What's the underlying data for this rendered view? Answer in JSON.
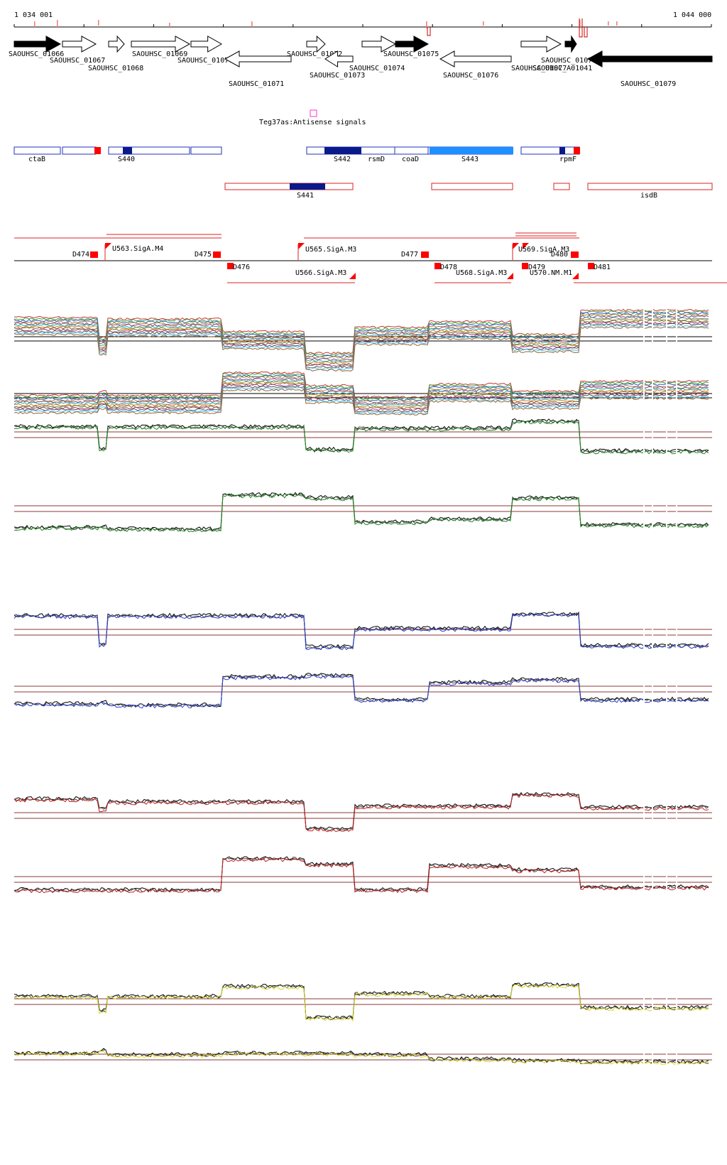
{
  "ruler": {
    "start_label": "1 034 001",
    "end_label": "1 044 000"
  },
  "genes": [
    {
      "name": "SAOUHSC_01066",
      "strand": "+",
      "filled": true
    },
    {
      "name": "SAOUHSC_01067",
      "strand": "+",
      "filled": false
    },
    {
      "name": "SAOUHSC_01068",
      "strand": "+",
      "filled": false
    },
    {
      "name": "SAOUHSC_01069",
      "strand": "+",
      "filled": false
    },
    {
      "name": "SAOUHSC_01070",
      "strand": "+",
      "filled": false
    },
    {
      "name": "SAOUHSC_01071",
      "strand": "-",
      "filled": false
    },
    {
      "name": "SAOUHSC_01072",
      "strand": "+",
      "filled": false
    },
    {
      "name": "SAOUHSC_01073",
      "strand": "-",
      "filled": false
    },
    {
      "name": "SAOUHSC_01074",
      "strand": "+",
      "filled": false
    },
    {
      "name": "SAOUHSC_01075",
      "strand": "+",
      "filled": true
    },
    {
      "name": "SAOUHSC_01076",
      "strand": "-",
      "filled": false
    },
    {
      "name": "SAOUHSC_01077",
      "strand": "+",
      "filled": false
    },
    {
      "name": "SAOUHSC_01078",
      "strand": "+",
      "filled": true
    },
    {
      "name": "SAOUHSC_01079",
      "strand": "-",
      "filled": true
    },
    {
      "name": "SAOUHSC_A01041",
      "strand": "+",
      "filled": false
    }
  ],
  "antisense": {
    "label": "Teg37as:Antisense signals"
  },
  "segments_row1": [
    {
      "label": "ctaB"
    },
    {
      "label": "S440"
    },
    {
      "label": "S442"
    },
    {
      "label": "rsmD"
    },
    {
      "label": "coaD"
    },
    {
      "label": "S443"
    },
    {
      "label": "rpmF"
    }
  ],
  "segments_row2": [
    {
      "label": "S441"
    },
    {
      "label": "isdB"
    }
  ],
  "promoters_top": [
    {
      "label": "D474"
    },
    {
      "label": "U563.SigA.M4"
    },
    {
      "label": "D475"
    },
    {
      "label": "U565.SigA.M3"
    },
    {
      "label": "D477"
    },
    {
      "label": "U569.SigA.M3"
    },
    {
      "label": "D480"
    }
  ],
  "promoters_bottom": [
    {
      "label": "D476"
    },
    {
      "label": "U566.SigA.M3"
    },
    {
      "label": "D478"
    },
    {
      "label": "U568.SigA.M3"
    },
    {
      "label": "D479"
    },
    {
      "label": "U570.NM.M1"
    },
    {
      "label": "D481"
    }
  ],
  "colors": {
    "gene_outline": "#000000",
    "segment_outline": "#2233bb",
    "segment_dark": "#0a1a8a",
    "segment_light": "#1e90ff",
    "promoter": "#ff0000",
    "refline": "#8b3a3a",
    "green": "#1f8c1f",
    "blue": "#2b3fd0",
    "red": "#c81e1e",
    "yellow": "#d8d820"
  }
}
